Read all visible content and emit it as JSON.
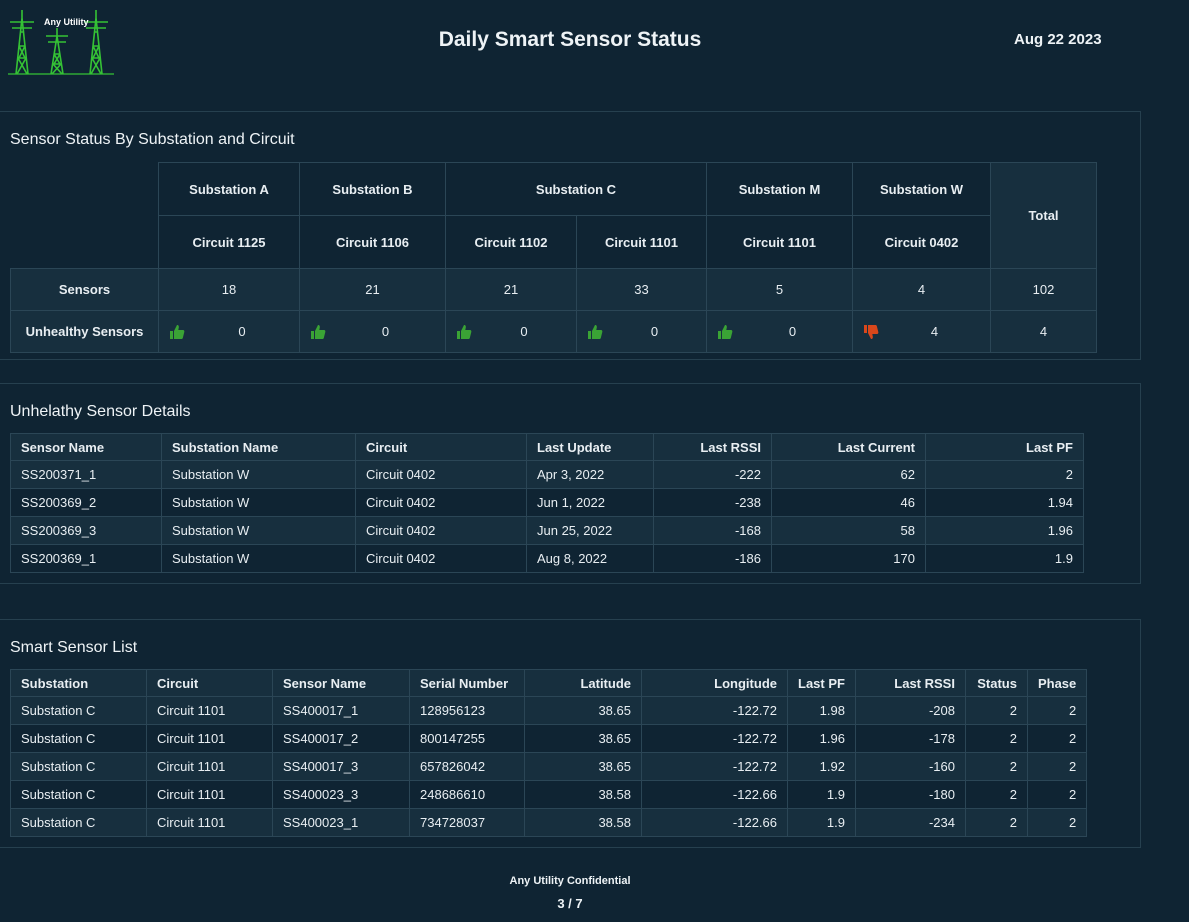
{
  "header": {
    "logo_text": "Any Utility",
    "title": "Daily Smart Sensor Status",
    "date": "Aug 22 2023"
  },
  "status_panel": {
    "title": "Sensor Status By Substation and Circuit",
    "substations": [
      "Substation  A",
      "Substation  B",
      "Substation  C",
      "Substation  M",
      "Substation  W"
    ],
    "circuits": [
      "Circuit 1125",
      "Circuit 1106",
      "Circuit 1102",
      "Circuit 1101",
      "Circuit 1101",
      "Circuit 0402"
    ],
    "total_label": "Total",
    "sensors_label": "Sensors",
    "sensors": [
      "18",
      "21",
      "21",
      "33",
      "5",
      "4",
      "102"
    ],
    "unhealthy_label": "Unhealthy Sensors",
    "unhealthy": [
      "0",
      "0",
      "0",
      "0",
      "0",
      "4",
      "4"
    ],
    "unhealthy_icons": [
      "thumbs-up-icon",
      "thumbs-up-icon",
      "thumbs-up-icon",
      "thumbs-up-icon",
      "thumbs-up-icon",
      "thumbs-down-icon"
    ],
    "colors": {
      "good": "#3aa335",
      "bad": "#d9471b"
    }
  },
  "unhealthy_panel": {
    "title": "Unhelathy Sensor Details",
    "columns": [
      "Sensor Name",
      "Substation Name",
      "Circuit",
      "Last Update",
      "Last RSSI",
      "Last Current",
      "Last PF"
    ],
    "rows": [
      [
        "SS200371_1",
        "Substation  W",
        "Circuit 0402",
        "Apr 3, 2022",
        "-222",
        "62",
        "2"
      ],
      [
        "SS200369_2",
        "Substation  W",
        "Circuit 0402",
        "Jun 1, 2022",
        "-238",
        "46",
        "1.94"
      ],
      [
        "SS200369_3",
        "Substation  W",
        "Circuit 0402",
        "Jun 25, 2022",
        "-168",
        "58",
        "1.96"
      ],
      [
        "SS200369_1",
        "Substation  W",
        "Circuit 0402",
        "Aug 8, 2022",
        "-186",
        "170",
        "1.9"
      ]
    ]
  },
  "sensor_list_panel": {
    "title": "Smart Sensor List",
    "columns": [
      "Substation",
      "Circuit",
      "Sensor Name",
      "Serial Number",
      "Latitude",
      "Longitude",
      "Last PF",
      "Last RSSI",
      "Status",
      "Phase"
    ],
    "rows": [
      [
        "Substation  C",
        "Circuit 1101",
        "SS400017_1",
        "128956123",
        "38.65",
        "-122.72",
        "1.98",
        "-208",
        "2",
        "2"
      ],
      [
        "Substation  C",
        "Circuit 1101",
        "SS400017_2",
        "800147255",
        "38.65",
        "-122.72",
        "1.96",
        "-178",
        "2",
        "2"
      ],
      [
        "Substation  C",
        "Circuit 1101",
        "SS400017_3",
        "657826042",
        "38.65",
        "-122.72",
        "1.92",
        "-160",
        "2",
        "2"
      ],
      [
        "Substation  C",
        "Circuit 1101",
        "SS400023_3",
        "248686610",
        "38.58",
        "-122.66",
        "1.9",
        "-180",
        "2",
        "2"
      ],
      [
        "Substation  C",
        "Circuit 1101",
        "SS400023_1",
        "734728037",
        "38.58",
        "-122.66",
        "1.9",
        "-234",
        "2",
        "2"
      ]
    ]
  },
  "footer": {
    "confidential": "Any Utility Confidential",
    "page": "3 / 7"
  }
}
